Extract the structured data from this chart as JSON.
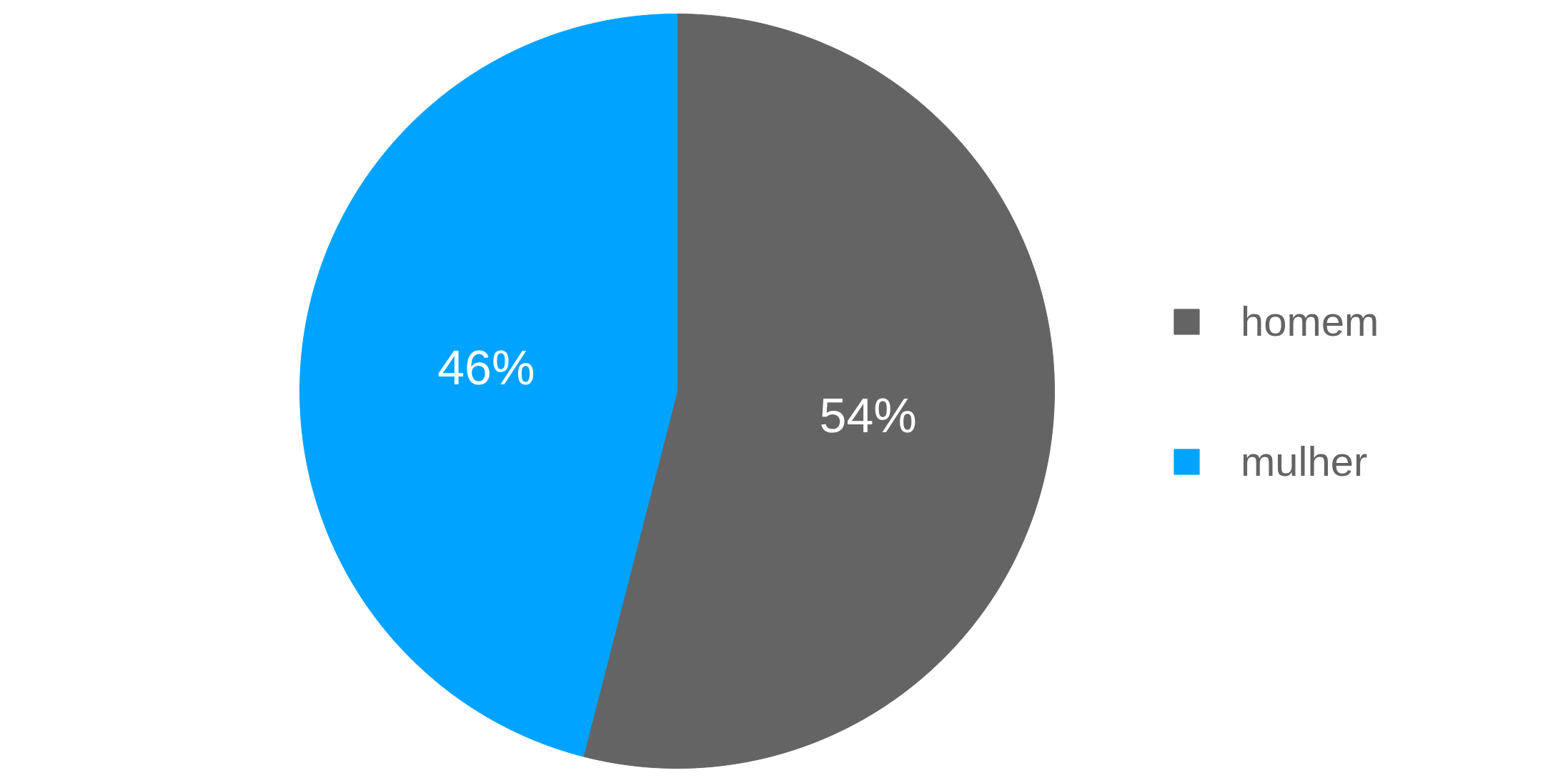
{
  "chart_data": {
    "type": "pie",
    "categories": [
      "homem",
      "mulher"
    ],
    "values": [
      54,
      46
    ],
    "colors": [
      "#646464",
      "#00a3ff"
    ],
    "value_labels": [
      "54%",
      "46%"
    ],
    "legend": "right"
  }
}
